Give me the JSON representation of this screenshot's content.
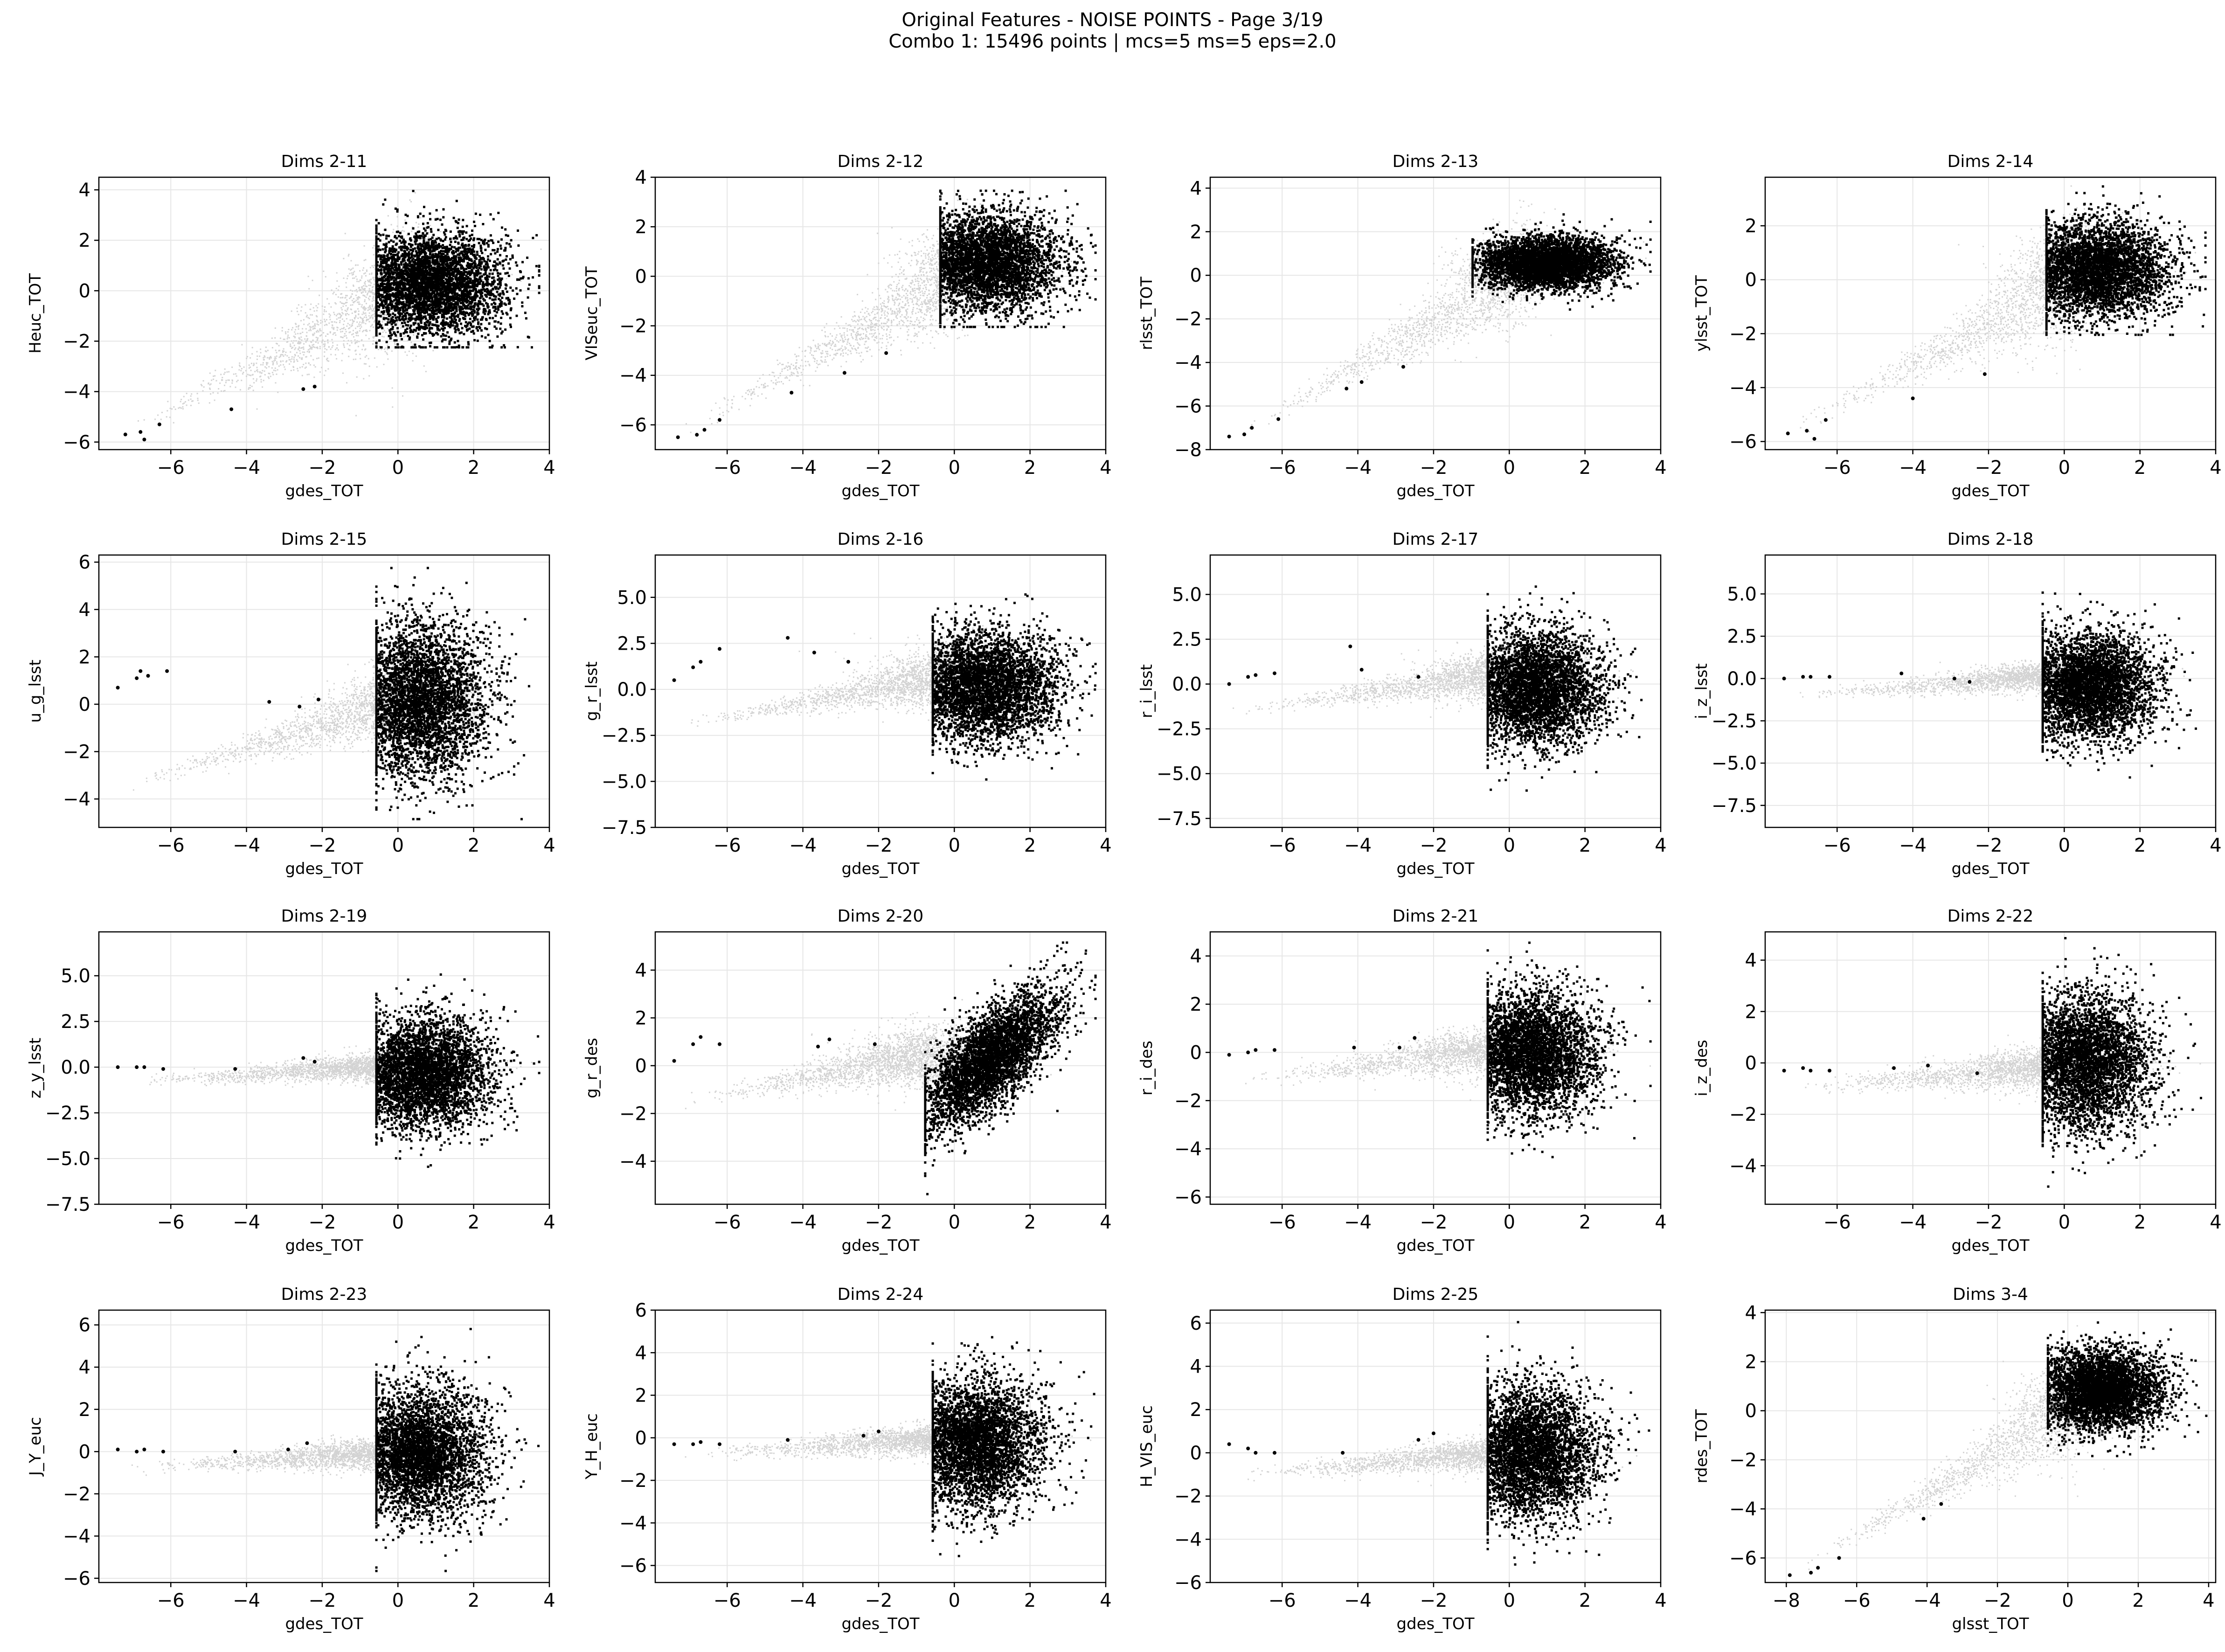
{
  "figure": {
    "title_line1": "Original Features - NOISE POINTS - Page 3/19",
    "title_line2": "Combo 1: 15496 points | mcs=5 ms=5 eps=2.0"
  },
  "colors": {
    "noise": "#000000",
    "background": "#d3d3d3",
    "grid": "#e6e6e6"
  },
  "chart_data": [
    {
      "type": "scatter",
      "title": "Dims 2-11",
      "xlabel": "gdes_TOT",
      "ylabel": "Heuc_TOT",
      "xlim": [
        -7.9,
        4.0
      ],
      "ylim": [
        -6.3,
        4.5
      ],
      "xticks": [
        -6,
        -4,
        -2,
        0,
        2,
        4
      ],
      "yticks": [
        -6,
        -4,
        -2,
        0,
        2,
        4
      ],
      "bg": {
        "cx": 0.5,
        "cy": 0.3,
        "sx": 1.0,
        "sy": 0.9,
        "xmin": -7.5,
        "ymin": -5.8,
        "ymax": 3.9
      },
      "noise": {
        "cx": 0.8,
        "cy": 0.3,
        "sx": 1.0,
        "sy": 1.0,
        "xmin": -0.6,
        "xmax": 3.7,
        "ymin": -2.2,
        "ymax": 4.0
      },
      "outliers": [
        [
          -7.2,
          -5.7
        ],
        [
          -6.8,
          -5.6
        ],
        [
          -6.7,
          -5.9
        ],
        [
          -6.3,
          -5.3
        ],
        [
          -4.4,
          -4.7
        ],
        [
          -2.5,
          -3.9
        ],
        [
          -2.2,
          -3.8
        ]
      ]
    },
    {
      "type": "scatter",
      "title": "Dims 2-12",
      "xlabel": "gdes_TOT",
      "ylabel": "VISeuc_TOT",
      "xlim": [
        -7.9,
        4.0
      ],
      "ylim": [
        -7.0,
        4.0
      ],
      "xticks": [
        -6,
        -4,
        -2,
        0,
        2,
        4
      ],
      "yticks": [
        -6,
        -4,
        -2,
        0,
        2,
        4
      ],
      "bg": {
        "cx": 0.5,
        "cy": 0.5,
        "sx": 1.0,
        "sy": 0.9,
        "xmin": -7.5,
        "ymin": -6.5,
        "ymax": 3.4
      },
      "noise": {
        "cx": 0.8,
        "cy": 0.6,
        "sx": 1.0,
        "sy": 1.0,
        "xmin": -0.4,
        "xmax": 3.7,
        "ymin": -2.0,
        "ymax": 3.5
      },
      "outliers": [
        [
          -7.3,
          -6.5
        ],
        [
          -6.8,
          -6.4
        ],
        [
          -6.6,
          -6.2
        ],
        [
          -6.2,
          -5.8
        ],
        [
          -4.3,
          -4.7
        ],
        [
          -2.9,
          -3.9
        ],
        [
          -1.8,
          -3.1
        ]
      ]
    },
    {
      "type": "scatter",
      "title": "Dims 2-13",
      "xlabel": "gdes_TOT",
      "ylabel": "rlsst_TOT",
      "xlim": [
        -7.9,
        4.0
      ],
      "ylim": [
        -8.0,
        4.5
      ],
      "xticks": [
        -6,
        -4,
        -2,
        0,
        2,
        4
      ],
      "yticks": [
        -8,
        -6,
        -4,
        -2,
        0,
        2,
        4
      ],
      "bg": {
        "cx": 0.5,
        "cy": 0.4,
        "sx": 1.0,
        "sy": 0.7,
        "xmin": -7.5,
        "ymin": -7.5,
        "ymax": 3.8
      },
      "noise": {
        "cx": 0.9,
        "cy": 0.6,
        "sx": 0.9,
        "sy": 0.6,
        "xmin": -1.0,
        "xmax": 3.7,
        "ymin": -2.0,
        "ymax": 3.7
      },
      "outliers": [
        [
          -7.4,
          -7.4
        ],
        [
          -7.0,
          -7.3
        ],
        [
          -6.8,
          -7.0
        ],
        [
          -6.1,
          -6.6
        ],
        [
          -4.3,
          -5.2
        ],
        [
          -3.9,
          -4.9
        ],
        [
          -2.8,
          -4.2
        ]
      ]
    },
    {
      "type": "scatter",
      "title": "Dims 2-14",
      "xlabel": "gdes_TOT",
      "ylabel": "ylsst_TOT",
      "xlim": [
        -7.9,
        4.0
      ],
      "ylim": [
        -6.3,
        3.8
      ],
      "xticks": [
        -6,
        -4,
        -2,
        0,
        2,
        4
      ],
      "yticks": [
        -6,
        -4,
        -2,
        0,
        2
      ],
      "bg": {
        "cx": 0.5,
        "cy": 0.3,
        "sx": 1.0,
        "sy": 0.9,
        "xmin": -7.5,
        "ymin": -5.8,
        "ymax": 3.4
      },
      "noise": {
        "cx": 0.8,
        "cy": 0.4,
        "sx": 1.0,
        "sy": 0.9,
        "xmin": -0.5,
        "xmax": 3.7,
        "ymin": -2.0,
        "ymax": 3.5
      },
      "outliers": [
        [
          -7.3,
          -5.7
        ],
        [
          -6.8,
          -5.6
        ],
        [
          -6.6,
          -5.9
        ],
        [
          -6.3,
          -5.2
        ],
        [
          -4.0,
          -4.4
        ],
        [
          -2.1,
          -3.5
        ]
      ]
    },
    {
      "type": "scatter",
      "title": "Dims 2-15",
      "xlabel": "gdes_TOT",
      "ylabel": "u_g_lsst",
      "xlim": [
        -7.9,
        4.0
      ],
      "ylim": [
        -5.2,
        6.3
      ],
      "xticks": [
        -6,
        -4,
        -2,
        0,
        2,
        4
      ],
      "yticks": [
        -4,
        -2,
        0,
        2,
        4,
        6
      ],
      "bg": {
        "cx": 0.3,
        "cy": 0.2,
        "sx": 1.0,
        "sy": 1.0,
        "xmin": -7.5,
        "ymin": -3.5,
        "ymax": 2.3
      },
      "noise": {
        "cx": 0.5,
        "cy": 0.2,
        "sx": 0.9,
        "sy": 1.6,
        "xmin": -0.6,
        "xmax": 3.7,
        "ymin": -4.8,
        "ymax": 5.8
      },
      "outliers": [
        [
          -7.4,
          0.7
        ],
        [
          -6.9,
          1.1
        ],
        [
          -6.8,
          1.4
        ],
        [
          -6.6,
          1.2
        ],
        [
          -6.1,
          1.4
        ],
        [
          -3.4,
          0.1
        ],
        [
          -2.6,
          -0.1
        ],
        [
          -2.1,
          0.2
        ]
      ]
    },
    {
      "type": "scatter",
      "title": "Dims 2-16",
      "xlabel": "gdes_TOT",
      "ylabel": "g_r_lsst",
      "xlim": [
        -7.9,
        4.0
      ],
      "ylim": [
        -7.5,
        7.3
      ],
      "xticks": [
        -6,
        -4,
        -2,
        0,
        2,
        4
      ],
      "yticks": [
        -7.5,
        -5.0,
        -2.5,
        0.0,
        2.5,
        5.0
      ],
      "ytickfmt": 1,
      "bg": {
        "cx": 0.0,
        "cy": 0.8,
        "sx": 1.2,
        "sy": 1.3,
        "xmin": -7.5,
        "ymin": -2.0,
        "ymax": 2.7
      },
      "noise": {
        "cx": 0.7,
        "cy": 0.2,
        "sx": 1.0,
        "sy": 1.5,
        "xmin": -0.6,
        "xmax": 3.7,
        "ymin": -6.9,
        "ymax": 6.7
      },
      "outliers": [
        [
          -7.4,
          0.5
        ],
        [
          -6.9,
          1.2
        ],
        [
          -6.7,
          1.5
        ],
        [
          -6.2,
          2.2
        ],
        [
          -4.4,
          2.8
        ],
        [
          -3.7,
          2.0
        ],
        [
          -2.8,
          1.5
        ]
      ]
    },
    {
      "type": "scatter",
      "title": "Dims 2-17",
      "xlabel": "gdes_TOT",
      "ylabel": "r_i_lsst",
      "xlim": [
        -7.9,
        4.0
      ],
      "ylim": [
        -8.0,
        7.2
      ],
      "xticks": [
        -6,
        -4,
        -2,
        0,
        2,
        4
      ],
      "yticks": [
        -7.5,
        -5.0,
        -2.5,
        0.0,
        2.5,
        5.0
      ],
      "ytickfmt": 1,
      "bg": {
        "cx": 0.0,
        "cy": 0.6,
        "sx": 1.2,
        "sy": 0.9,
        "xmin": -7.5,
        "ymin": -1.5,
        "ymax": 2.4
      },
      "noise": {
        "cx": 0.6,
        "cy": -0.2,
        "sx": 0.9,
        "sy": 1.6,
        "xmin": -0.6,
        "xmax": 3.7,
        "ymin": -7.8,
        "ymax": 6.2
      },
      "outliers": [
        [
          -7.4,
          0.0
        ],
        [
          -6.9,
          0.4
        ],
        [
          -6.7,
          0.5
        ],
        [
          -6.2,
          0.6
        ],
        [
          -4.2,
          2.1
        ],
        [
          -3.9,
          0.8
        ],
        [
          -2.4,
          0.4
        ]
      ]
    },
    {
      "type": "scatter",
      "title": "Dims 2-18",
      "xlabel": "gdes_TOT",
      "ylabel": "i_z_lsst",
      "xlim": [
        -7.9,
        4.0
      ],
      "ylim": [
        -8.8,
        7.3
      ],
      "xticks": [
        -6,
        -4,
        -2,
        0,
        2,
        4
      ],
      "yticks": [
        -7.5,
        -5.0,
        -2.5,
        0.0,
        2.5,
        5.0
      ],
      "ytickfmt": 1,
      "bg": {
        "cx": 0.0,
        "cy": 0.2,
        "sx": 1.2,
        "sy": 0.5,
        "xmin": -7.5,
        "ymin": -1.0,
        "ymax": 1.3
      },
      "noise": {
        "cx": 0.6,
        "cy": -0.4,
        "sx": 0.9,
        "sy": 1.6,
        "xmin": -0.6,
        "xmax": 3.7,
        "ymin": -8.2,
        "ymax": 6.4
      },
      "outliers": [
        [
          -7.4,
          0.0
        ],
        [
          -6.9,
          0.1
        ],
        [
          -6.7,
          0.1
        ],
        [
          -6.2,
          0.1
        ],
        [
          -4.3,
          0.3
        ],
        [
          -2.9,
          0.0
        ],
        [
          -2.5,
          -0.2
        ]
      ]
    },
    {
      "type": "scatter",
      "title": "Dims 2-19",
      "xlabel": "gdes_TOT",
      "ylabel": "z_y_lsst",
      "xlim": [
        -7.9,
        4.0
      ],
      "ylim": [
        -7.5,
        7.4
      ],
      "xticks": [
        -6,
        -4,
        -2,
        0,
        2,
        4
      ],
      "yticks": [
        -7.5,
        -5.0,
        -2.5,
        0.0,
        2.5,
        5.0
      ],
      "ytickfmt": 1,
      "bg": {
        "cx": 0.0,
        "cy": 0.1,
        "sx": 1.2,
        "sy": 0.4,
        "xmin": -7.5,
        "ymin": -0.8,
        "ymax": 1.0
      },
      "noise": {
        "cx": 0.6,
        "cy": -0.3,
        "sx": 0.9,
        "sy": 1.5,
        "xmin": -0.6,
        "xmax": 3.7,
        "ymin": -7.0,
        "ymax": 6.6
      },
      "outliers": [
        [
          -7.4,
          0.0
        ],
        [
          -6.9,
          0.0
        ],
        [
          -6.7,
          0.0
        ],
        [
          -6.2,
          -0.1
        ],
        [
          -4.3,
          -0.1
        ],
        [
          -2.5,
          0.5
        ],
        [
          -2.2,
          0.3
        ]
      ]
    },
    {
      "type": "scatter",
      "title": "Dims 2-20",
      "xlabel": "gdes_TOT",
      "ylabel": "g_r_des",
      "xlim": [
        -7.9,
        4.0
      ],
      "ylim": [
        -5.8,
        5.6
      ],
      "xticks": [
        -6,
        -4,
        -2,
        0,
        2,
        4
      ],
      "yticks": [
        -4,
        -2,
        0,
        2,
        4
      ],
      "bg": {
        "cx": -0.5,
        "cy": 0.5,
        "sx": 1.2,
        "sy": 0.9,
        "xmin": -7.5,
        "ymin": -1.5,
        "ymax": 2.1
      },
      "noise": {
        "cx": 0.9,
        "cy": 0.3,
        "sx": 0.9,
        "sy": 1.0,
        "xmin": -0.8,
        "xmax": 3.7,
        "ymin": -5.4,
        "ymax": 5.2
      },
      "trend": 1.1,
      "outliers": [
        [
          -7.4,
          0.2
        ],
        [
          -6.9,
          0.9
        ],
        [
          -6.7,
          1.2
        ],
        [
          -6.2,
          0.9
        ],
        [
          -3.6,
          0.8
        ],
        [
          -3.3,
          1.1
        ],
        [
          -2.1,
          0.9
        ]
      ]
    },
    {
      "type": "scatter",
      "title": "Dims 2-21",
      "xlabel": "gdes_TOT",
      "ylabel": "r_i_des",
      "xlim": [
        -7.9,
        4.0
      ],
      "ylim": [
        -6.3,
        5.0
      ],
      "xticks": [
        -6,
        -4,
        -2,
        0,
        2,
        4
      ],
      "yticks": [
        -6,
        -4,
        -2,
        0,
        2,
        4
      ],
      "bg": {
        "cx": 0.0,
        "cy": 0.2,
        "sx": 1.2,
        "sy": 0.5,
        "xmin": -7.5,
        "ymin": -1.2,
        "ymax": 1.6
      },
      "noise": {
        "cx": 0.5,
        "cy": 0.0,
        "sx": 0.9,
        "sy": 1.3,
        "xmin": -0.6,
        "xmax": 3.7,
        "ymin": -5.8,
        "ymax": 4.6
      },
      "outliers": [
        [
          -7.4,
          -0.1
        ],
        [
          -6.9,
          0.0
        ],
        [
          -6.7,
          0.1
        ],
        [
          -6.2,
          0.1
        ],
        [
          -4.1,
          0.2
        ],
        [
          -2.9,
          0.2
        ],
        [
          -2.5,
          0.6
        ]
      ]
    },
    {
      "type": "scatter",
      "title": "Dims 2-22",
      "xlabel": "gdes_TOT",
      "ylabel": "i_z_des",
      "xlim": [
        -7.9,
        4.0
      ],
      "ylim": [
        -5.5,
        5.1
      ],
      "xticks": [
        -6,
        -4,
        -2,
        0,
        2,
        4
      ],
      "yticks": [
        -4,
        -2,
        0,
        2,
        4
      ],
      "bg": {
        "cx": 0.0,
        "cy": -0.1,
        "sx": 1.2,
        "sy": 0.4,
        "xmin": -7.5,
        "ymin": -1.0,
        "ymax": 1.0
      },
      "noise": {
        "cx": 0.5,
        "cy": 0.1,
        "sx": 0.9,
        "sy": 1.3,
        "xmin": -0.6,
        "xmax": 3.7,
        "ymin": -5.0,
        "ymax": 4.9
      },
      "outliers": [
        [
          -7.4,
          -0.3
        ],
        [
          -6.9,
          -0.2
        ],
        [
          -6.7,
          -0.3
        ],
        [
          -6.2,
          -0.3
        ],
        [
          -4.5,
          -0.2
        ],
        [
          -3.6,
          -0.1
        ],
        [
          -2.3,
          -0.4
        ]
      ]
    },
    {
      "type": "scatter",
      "title": "Dims 2-23",
      "xlabel": "gdes_TOT",
      "ylabel": "J_Y_euc",
      "xlim": [
        -7.9,
        4.0
      ],
      "ylim": [
        -6.2,
        6.7
      ],
      "xticks": [
        -6,
        -4,
        -2,
        0,
        2,
        4
      ],
      "yticks": [
        -6,
        -4,
        -2,
        0,
        2,
        4,
        6
      ],
      "bg": {
        "cx": 0.0,
        "cy": 0.0,
        "sx": 1.2,
        "sy": 0.3,
        "xmin": -7.5,
        "ymin": -0.8,
        "ymax": 0.9
      },
      "noise": {
        "cx": 0.5,
        "cy": 0.0,
        "sx": 0.9,
        "sy": 1.5,
        "xmin": -0.6,
        "xmax": 3.7,
        "ymin": -5.6,
        "ymax": 6.2
      },
      "outliers": [
        [
          -7.4,
          0.1
        ],
        [
          -6.9,
          0.0
        ],
        [
          -6.7,
          0.1
        ],
        [
          -6.2,
          0.0
        ],
        [
          -4.3,
          0.0
        ],
        [
          -2.9,
          0.1
        ],
        [
          -2.4,
          0.4
        ]
      ]
    },
    {
      "type": "scatter",
      "title": "Dims 2-24",
      "xlabel": "gdes_TOT",
      "ylabel": "Y_H_euc",
      "xlim": [
        -7.9,
        4.0
      ],
      "ylim": [
        -6.8,
        6.0
      ],
      "xticks": [
        -6,
        -4,
        -2,
        0,
        2,
        4
      ],
      "yticks": [
        -6,
        -4,
        -2,
        0,
        2,
        4,
        6
      ],
      "bg": {
        "cx": 0.0,
        "cy": 0.0,
        "sx": 1.2,
        "sy": 0.3,
        "xmin": -7.5,
        "ymin": -0.8,
        "ymax": 0.9
      },
      "noise": {
        "cx": 0.5,
        "cy": -0.2,
        "sx": 0.9,
        "sy": 1.5,
        "xmin": -0.6,
        "xmax": 3.7,
        "ymin": -6.4,
        "ymax": 5.5
      },
      "outliers": [
        [
          -7.4,
          -0.3
        ],
        [
          -6.9,
          -0.3
        ],
        [
          -6.7,
          -0.2
        ],
        [
          -6.2,
          -0.3
        ],
        [
          -4.4,
          -0.1
        ],
        [
          -2.4,
          0.1
        ],
        [
          -2.0,
          0.3
        ]
      ]
    },
    {
      "type": "scatter",
      "title": "Dims 2-25",
      "xlabel": "gdes_TOT",
      "ylabel": "H_VIS_euc",
      "xlim": [
        -7.9,
        4.0
      ],
      "ylim": [
        -6.0,
        6.6
      ],
      "xticks": [
        -6,
        -4,
        -2,
        0,
        2,
        4
      ],
      "yticks": [
        -6,
        -4,
        -2,
        0,
        2,
        4,
        6
      ],
      "bg": {
        "cx": 0.0,
        "cy": 0.0,
        "sx": 1.2,
        "sy": 0.4,
        "xmin": -7.5,
        "ymin": -1.0,
        "ymax": 1.0
      },
      "noise": {
        "cx": 0.5,
        "cy": 0.1,
        "sx": 0.9,
        "sy": 1.5,
        "xmin": -0.6,
        "xmax": 3.7,
        "ymin": -5.5,
        "ymax": 6.1
      },
      "outliers": [
        [
          -7.4,
          0.4
        ],
        [
          -6.9,
          0.2
        ],
        [
          -6.7,
          0.0
        ],
        [
          -6.2,
          0.0
        ],
        [
          -4.4,
          0.0
        ],
        [
          -2.4,
          0.6
        ],
        [
          -2.0,
          0.9
        ]
      ]
    },
    {
      "type": "scatter",
      "title": "Dims 3-4",
      "xlabel": "glsst_TOT",
      "ylabel": "rdes_TOT",
      "xlim": [
        -8.6,
        4.2
      ],
      "ylim": [
        -7.0,
        4.1
      ],
      "xticks": [
        -8,
        -6,
        -4,
        -2,
        0,
        2,
        4
      ],
      "yticks": [
        -6,
        -4,
        -2,
        0,
        2,
        4
      ],
      "bg": {
        "cx": 0.5,
        "cy": 0.5,
        "sx": 1.0,
        "sy": 0.9,
        "xmin": -8.0,
        "ymin": -6.7,
        "ymax": 3.4
      },
      "noise": {
        "cx": 0.9,
        "cy": 0.9,
        "sx": 0.9,
        "sy": 0.8,
        "xmin": -0.6,
        "xmax": 3.9,
        "ymin": -1.8,
        "ymax": 3.7
      },
      "outliers": [
        [
          -7.9,
          -6.7
        ],
        [
          -7.3,
          -6.6
        ],
        [
          -7.1,
          -6.4
        ],
        [
          -6.5,
          -6.0
        ],
        [
          -4.1,
          -4.4
        ],
        [
          -3.6,
          -3.8
        ]
      ]
    }
  ]
}
